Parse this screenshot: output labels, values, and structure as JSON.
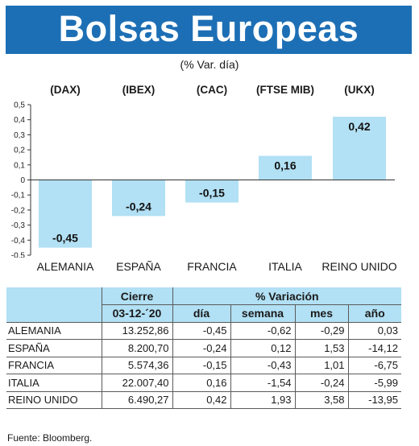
{
  "title": "Bolsas Europeas",
  "subtitle": "(% Var. día)",
  "source": "Fuente: Bloomberg.",
  "colors": {
    "banner": "#1d6fb5",
    "bar": "#b2e0f4",
    "table_header": "#b2e0f4"
  },
  "chart_data": {
    "type": "bar",
    "title": "Bolsas Europeas",
    "subtitle": "(% Var. día)",
    "indices": [
      "(DAX)",
      "(IBEX)",
      "(CAC)",
      "(FTSE MIB)",
      "(UKX)"
    ],
    "categories": [
      "ALEMANIA",
      "ESPAÑA",
      "FRANCIA",
      "ITALIA",
      "REINO UNIDO"
    ],
    "values": [
      -0.45,
      -0.24,
      -0.15,
      0.16,
      0.42
    ],
    "value_labels": [
      "-0,45",
      "-0,24",
      "-0,15",
      "0,16",
      "0,42"
    ],
    "ylim": [
      -0.5,
      0.5
    ],
    "yticks": [
      0.5,
      0.4,
      0.3,
      0.2,
      0.1,
      0,
      -0.1,
      -0.2,
      -0.3,
      -0.4,
      -0.5
    ],
    "ytick_labels": [
      "0,5",
      "0,4",
      "0,3",
      "0,2",
      "0,1",
      "0",
      "-0,1",
      "-0,2",
      "-0,3",
      "-0,4",
      "-0,5"
    ],
    "grid": false,
    "legend": "none"
  },
  "table": {
    "header_cierre": "Cierre",
    "header_variacion": "% Variación",
    "date": "03-12-´20",
    "columns": [
      "día",
      "semana",
      "mes",
      "año"
    ],
    "rows": [
      {
        "name": "ALEMANIA",
        "cierre": "13.252,86",
        "dia": "-0,45",
        "semana": "-0,62",
        "mes": "-0,29",
        "anio": "0,03"
      },
      {
        "name": "ESPAÑA",
        "cierre": "8.200,70",
        "dia": "-0,24",
        "semana": "0,12",
        "mes": "1,53",
        "anio": "-14,12"
      },
      {
        "name": "FRANCIA",
        "cierre": "5.574,36",
        "dia": "-0,15",
        "semana": "-0,43",
        "mes": "1,01",
        "anio": "-6,75"
      },
      {
        "name": "ITALIA",
        "cierre": "22.007,40",
        "dia": "0,16",
        "semana": "-1,54",
        "mes": "-0,24",
        "anio": "-5,99"
      },
      {
        "name": "REINO UNIDO",
        "cierre": "6.490,27",
        "dia": "0,42",
        "semana": "1,93",
        "mes": "3,58",
        "anio": "-13,95"
      }
    ]
  }
}
